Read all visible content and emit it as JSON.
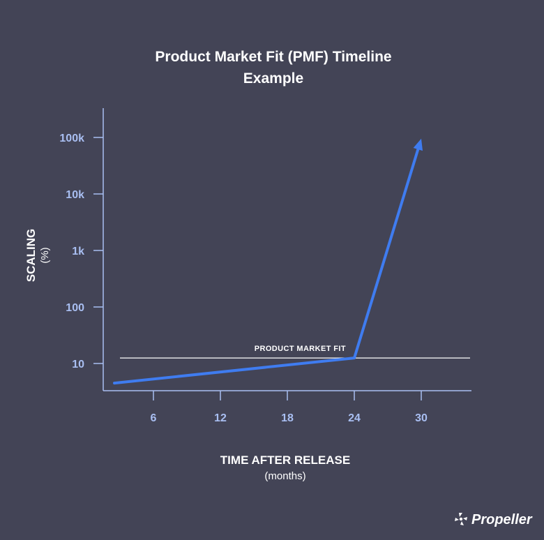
{
  "chart_data": {
    "type": "line",
    "title_lines": [
      "Product Market Fit (PMF) Timeline",
      "Example"
    ],
    "xlabel": "TIME AFTER RELEASE",
    "xlabel_sub": "(months)",
    "ylabel": "SCALING",
    "ylabel_sub": "(%)",
    "x_ticks": [
      {
        "value": 6,
        "label": "6"
      },
      {
        "value": 12,
        "label": "12"
      },
      {
        "value": 18,
        "label": "18"
      },
      {
        "value": 24,
        "label": "24"
      },
      {
        "value": 30,
        "label": "30"
      }
    ],
    "y_scale": "log",
    "y_ticks": [
      {
        "value": 10,
        "label": "10"
      },
      {
        "value": 100,
        "label": "100"
      },
      {
        "value": 1000,
        "label": "1k"
      },
      {
        "value": 10000,
        "label": "10k"
      },
      {
        "value": 100000,
        "label": "100k"
      }
    ],
    "xlim": [
      1.5,
      34.5
    ],
    "ylim": [
      3.3,
      330000
    ],
    "series": [
      {
        "color": "#3f7cf0",
        "points": [
          [
            2.5,
            4.5
          ],
          [
            24,
            12.5
          ],
          [
            30,
            95000
          ]
        ]
      }
    ],
    "reference_line": {
      "y": 12.5,
      "x_start": 2.5,
      "x_end": 34.5,
      "label": "PRODUCT MARKET FIT",
      "label_x": 24,
      "color": "#ffffff"
    }
  },
  "branding": {
    "name": "Propeller",
    "icon": "propeller-logo-icon"
  },
  "colors": {
    "background": "#434456",
    "axis": "#a9bff2",
    "series": "#3f7cf0",
    "text": "#ffffff"
  }
}
